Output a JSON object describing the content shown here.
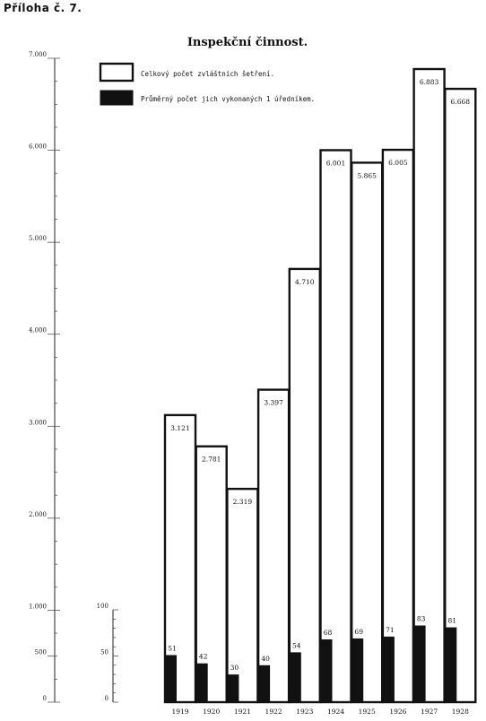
{
  "header": {
    "appendix_label": "Příloha č. 7."
  },
  "chart_data": {
    "type": "bar",
    "title": "Inspekční činnost.",
    "categories": [
      "1919",
      "1920",
      "1921",
      "1922",
      "1923",
      "1924",
      "1925",
      "1926",
      "1927",
      "1928"
    ],
    "series": [
      {
        "name": "Celkový počet zvláštních šetření.",
        "values": [
          3121,
          2781,
          2319,
          3397,
          4710,
          6001,
          5865,
          6005,
          6883,
          6668
        ],
        "labels": [
          "3.121",
          "2.781",
          "2.319",
          "3.397",
          "4.710",
          "6.001",
          "5.865",
          "6.005",
          "6.883",
          "6.668"
        ],
        "color": "#ffffff"
      },
      {
        "name": "Průměrný počet jich vykonaných 1 úředníkem.",
        "values": [
          51,
          42,
          30,
          40,
          54,
          68,
          69,
          71,
          83,
          81
        ],
        "labels": [
          "51",
          "42",
          "30",
          "40",
          "54",
          "68",
          "69",
          "71",
          "83",
          "81"
        ],
        "color": "#111111"
      }
    ],
    "left_axis": {
      "ylim": [
        0,
        7000
      ],
      "ticks": [
        0,
        500,
        1000,
        2000,
        3000,
        4000,
        5000,
        6000,
        7000
      ],
      "tick_labels": [
        "0",
        "500",
        "1.000",
        "2.000",
        "3.000",
        "4.000",
        "5.000",
        "6.000",
        "7.000"
      ]
    },
    "right_axis": {
      "ylim": [
        0,
        100
      ],
      "ticks": [
        0,
        50,
        100
      ],
      "tick_labels": [
        "0",
        "50",
        "100"
      ]
    },
    "legend_placement": "top-left",
    "grid": false
  }
}
